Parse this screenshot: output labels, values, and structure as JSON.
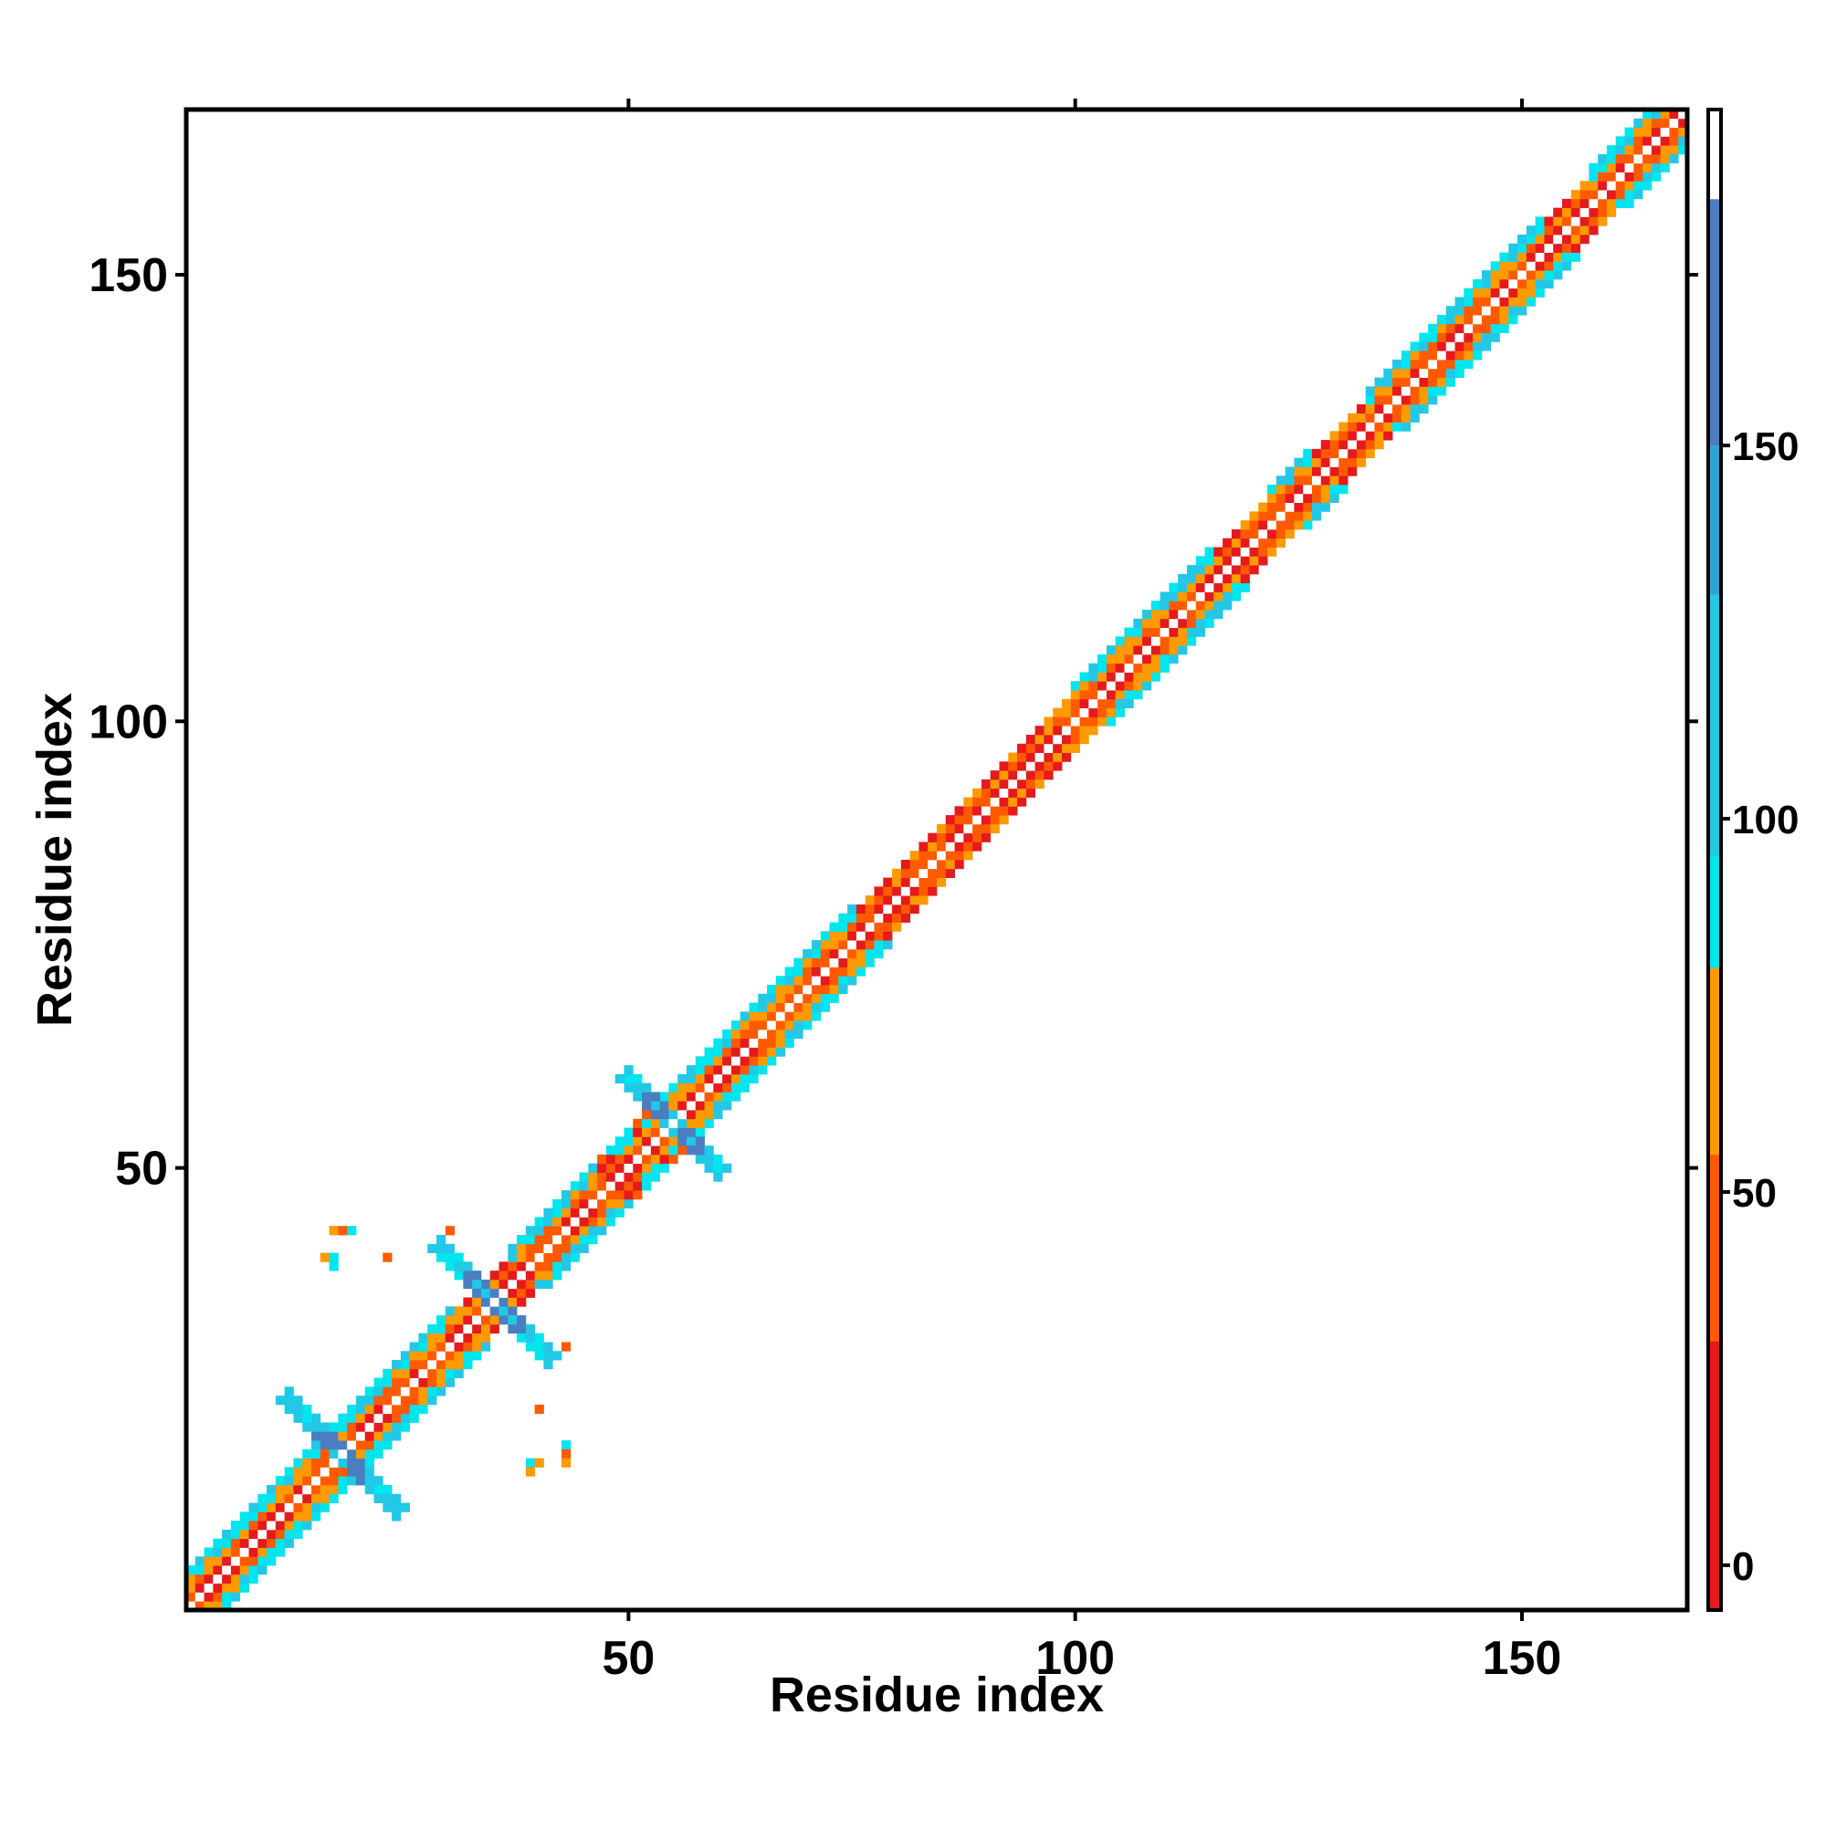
{
  "chart_data": {
    "type": "heatmap",
    "xlabel": "Residue index",
    "ylabel": "Residue index",
    "xlim": [
      0.5,
      168.5
    ],
    "ylim": [
      0.5,
      168.5
    ],
    "xticks": [
      50,
      100,
      150
    ],
    "yticks": [
      50,
      100,
      150
    ],
    "colorbar": {
      "range": [
        -6,
        195
      ],
      "ticks": [
        0,
        50,
        100,
        150
      ],
      "bands": [
        {
          "from": -6,
          "to": 30,
          "color": "#e41a1c"
        },
        {
          "from": 30,
          "to": 55,
          "color": "#ff5a00"
        },
        {
          "from": 55,
          "to": 80,
          "color": "#ff9a00"
        },
        {
          "from": 80,
          "to": 95,
          "color": "#00e5ee"
        },
        {
          "from": 95,
          "to": 130,
          "color": "#22c8e6"
        },
        {
          "from": 130,
          "to": 150,
          "color": "#2aa6d6"
        },
        {
          "from": 150,
          "to": 183,
          "color": "#4a7ec0"
        },
        {
          "from": 183,
          "to": 195,
          "color": "#ffffff"
        }
      ]
    },
    "diagonal_profile": {
      "description_values_by_offset": "color index per |i-j| offset along diagonal",
      "segments": [
        {
          "from": 1,
          "to": 5,
          "pattern": "helix"
        },
        {
          "from": 5,
          "to": 9,
          "pattern": "helix"
        },
        {
          "from": 9,
          "to": 15,
          "pattern": "helix"
        },
        {
          "from": 15,
          "to": 24,
          "pattern": "helix"
        },
        {
          "from": 24,
          "to": 31,
          "pattern": "helix"
        },
        {
          "from": 31,
          "to": 37,
          "pattern": "coil"
        },
        {
          "from": 37,
          "to": 47,
          "pattern": "helix"
        },
        {
          "from": 47,
          "to": 54,
          "pattern": "strand"
        },
        {
          "from": 54,
          "to": 62,
          "pattern": "helix"
        },
        {
          "from": 62,
          "to": 68,
          "pattern": "helix"
        },
        {
          "from": 68,
          "to": 76,
          "pattern": "helix"
        },
        {
          "from": 76,
          "to": 92,
          "pattern": "coil"
        },
        {
          "from": 92,
          "to": 100,
          "pattern": "coil"
        },
        {
          "from": 100,
          "to": 108,
          "pattern": "helix"
        },
        {
          "from": 108,
          "to": 116,
          "pattern": "helix"
        },
        {
          "from": 116,
          "to": 122,
          "pattern": "coil"
        },
        {
          "from": 122,
          "to": 127,
          "pattern": "helix"
        },
        {
          "from": 127,
          "to": 133,
          "pattern": "coil"
        },
        {
          "from": 133,
          "to": 141,
          "pattern": "helix"
        },
        {
          "from": 141,
          "to": 147,
          "pattern": "helix"
        },
        {
          "from": 147,
          "to": 153,
          "pattern": "helix"
        },
        {
          "from": 153,
          "to": 158,
          "pattern": "coil"
        },
        {
          "from": 158,
          "to": 168,
          "pattern": "helix"
        }
      ]
    },
    "crosses": [
      {
        "i": 18,
        "j": 18,
        "arm": 6
      },
      {
        "i": 35,
        "j": 35,
        "arm": 6
      },
      {
        "i": 55,
        "j": 55,
        "arm": 5
      }
    ],
    "off_diagonal_patches": [
      {
        "x": 17,
        "y": 43,
        "v": 60
      },
      {
        "x": 18,
        "y": 43,
        "v": 45
      },
      {
        "x": 19,
        "y": 43,
        "v": 88
      },
      {
        "x": 16,
        "y": 40,
        "v": 60
      },
      {
        "x": 17,
        "y": 39,
        "v": 88
      },
      {
        "x": 17,
        "y": 40,
        "v": 90
      },
      {
        "x": 23,
        "y": 40,
        "v": 40
      },
      {
        "x": 30,
        "y": 43,
        "v": 40
      },
      {
        "x": 39,
        "y": 17,
        "v": 88
      },
      {
        "x": 40,
        "y": 17,
        "v": 65
      },
      {
        "x": 39,
        "y": 16,
        "v": 60
      },
      {
        "x": 43,
        "y": 19,
        "v": 88
      },
      {
        "x": 43,
        "y": 18,
        "v": 45
      },
      {
        "x": 43,
        "y": 17,
        "v": 60
      },
      {
        "x": 40,
        "y": 23,
        "v": 40
      },
      {
        "x": 43,
        "y": 30,
        "v": 40
      }
    ]
  }
}
